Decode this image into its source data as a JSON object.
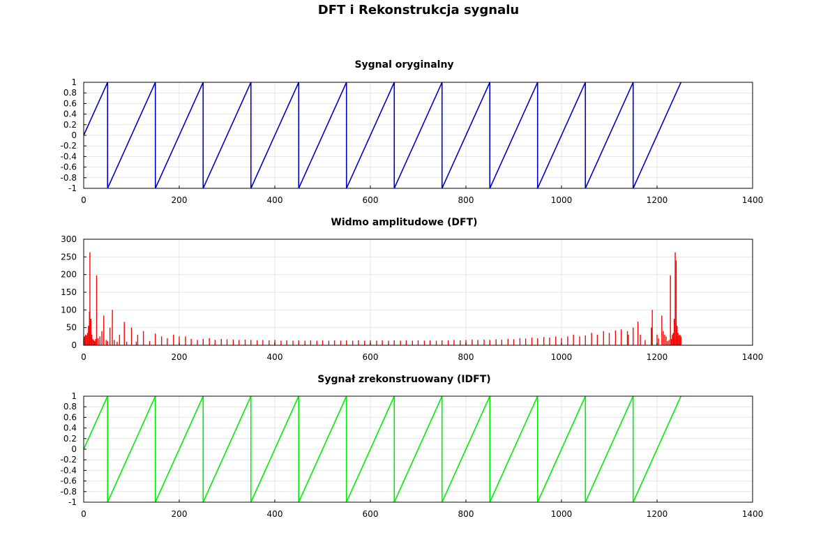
{
  "page": {
    "title": "DFT i Rekonstrukcja sygnalu"
  },
  "chart_data": [
    {
      "type": "line",
      "title": "Sygnal oryginalny",
      "xlabel": "",
      "ylabel": "",
      "xlim": [
        0,
        1400
      ],
      "ylim": [
        -1,
        1
      ],
      "xticks": [
        0,
        200,
        400,
        600,
        800,
        1000,
        1200,
        1400
      ],
      "yticks": [
        1,
        0.8,
        0.6,
        0.4,
        0.2,
        0,
        -0.2,
        -0.4,
        -0.6,
        -0.8,
        -1
      ],
      "grid": true,
      "color": "#0000cc",
      "series": [
        {
          "x": [
            0,
            50,
            50,
            150,
            150,
            250,
            250,
            350,
            350,
            450,
            450,
            550,
            550,
            650,
            650,
            750,
            750,
            850,
            850,
            950,
            950,
            1050,
            1050,
            1150,
            1150,
            1250
          ],
          "y": [
            0,
            1,
            -1,
            1,
            -1,
            1,
            -1,
            1,
            -1,
            1,
            -1,
            1,
            -1,
            1,
            -1,
            1,
            -1,
            1,
            -1,
            1,
            -1,
            1,
            -1,
            1,
            -1,
            1
          ]
        }
      ]
    },
    {
      "type": "bar",
      "title": "Widmo amplitudowe (DFT)",
      "xlabel": "",
      "ylabel": "",
      "xlim": [
        0,
        1400
      ],
      "ylim": [
        0,
        300
      ],
      "xticks": [
        0,
        200,
        400,
        600,
        800,
        1000,
        1200,
        1400
      ],
      "yticks": [
        300,
        250,
        200,
        150,
        100,
        50,
        0
      ],
      "grid": true,
      "color": "#ff0000",
      "series": [
        {
          "x": [
            0,
            2,
            4,
            6,
            8,
            10,
            12,
            13,
            15,
            17,
            19,
            21,
            23,
            25,
            27,
            30,
            34,
            38,
            42,
            47,
            50,
            55,
            60,
            64,
            70,
            75,
            85,
            90,
            100,
            110,
            113,
            125,
            138,
            150,
            163,
            175,
            188,
            200,
            213,
            225,
            238,
            250,
            263,
            275,
            288,
            300,
            313,
            325,
            338,
            350,
            363,
            375,
            388,
            400,
            413,
            425,
            438,
            450,
            463,
            475,
            488,
            500,
            513,
            525,
            538,
            550,
            563,
            575,
            588,
            600,
            613,
            625,
            638,
            650,
            663,
            675,
            688,
            700,
            713,
            725,
            738,
            750,
            763,
            775,
            788,
            800,
            813,
            825,
            838,
            850,
            863,
            875,
            888,
            900,
            913,
            925,
            938,
            950,
            963,
            975,
            988,
            1000,
            1013,
            1025,
            1038,
            1050,
            1063,
            1075,
            1088,
            1100,
            1113,
            1125,
            1138,
            1140,
            1150,
            1160,
            1165,
            1175,
            1188,
            1190,
            1200,
            1203,
            1210,
            1213,
            1216,
            1219,
            1222,
            1225,
            1228,
            1230,
            1232,
            1234,
            1236,
            1238,
            1240,
            1242,
            1244,
            1246,
            1248,
            1250
          ],
          "y": [
            20,
            25,
            30,
            28,
            35,
            55,
            95,
            263,
            75,
            30,
            18,
            15,
            12,
            18,
            198,
            20,
            25,
            40,
            84,
            15,
            12,
            50,
            100,
            15,
            10,
            30,
            66,
            10,
            50,
            10,
            30,
            40,
            12,
            33,
            25,
            20,
            30,
            25,
            25,
            18,
            15,
            18,
            20,
            15,
            18,
            17,
            16,
            15,
            16,
            15,
            14,
            15,
            14,
            15,
            13,
            14,
            13,
            14,
            13,
            14,
            13,
            14,
            13,
            14,
            13,
            14,
            13,
            14,
            13,
            14,
            13,
            14,
            13,
            14,
            13,
            14,
            13,
            14,
            13,
            14,
            13,
            14,
            14,
            15,
            14,
            15,
            16,
            15,
            16,
            15,
            17,
            16,
            18,
            17,
            20,
            19,
            22,
            20,
            23,
            22,
            25,
            20,
            25,
            30,
            25,
            28,
            35,
            30,
            40,
            35,
            42,
            45,
            40,
            30,
            50,
            67,
            30,
            15,
            50,
            100,
            30,
            20,
            84,
            40,
            30,
            25,
            12,
            15,
            198,
            18,
            30,
            35,
            75,
            263,
            240,
            55,
            35,
            28,
            30,
            25
          ]
        }
      ]
    },
    {
      "type": "line",
      "title": "Sygnał zrekonstruowany (IDFT)",
      "xlabel": "",
      "ylabel": "",
      "xlim": [
        0,
        1400
      ],
      "ylim": [
        -1,
        1
      ],
      "xticks": [
        0,
        200,
        400,
        600,
        800,
        1000,
        1200,
        1400
      ],
      "yticks": [
        1,
        0.8,
        0.6,
        0.4,
        0.2,
        0,
        -0.2,
        -0.4,
        -0.6,
        -0.8,
        -1
      ],
      "grid": true,
      "color": "#00ee00",
      "series": [
        {
          "x": [
            0,
            50,
            50,
            150,
            150,
            250,
            250,
            350,
            350,
            450,
            450,
            550,
            550,
            650,
            650,
            750,
            750,
            850,
            850,
            950,
            950,
            1050,
            1050,
            1150,
            1150,
            1250
          ],
          "y": [
            0,
            1,
            -1,
            1,
            -1,
            1,
            -1,
            1,
            -1,
            1,
            -1,
            1,
            -1,
            1,
            -1,
            1,
            -1,
            1,
            -1,
            1,
            -1,
            1,
            -1,
            1,
            -1,
            1
          ]
        }
      ]
    }
  ]
}
